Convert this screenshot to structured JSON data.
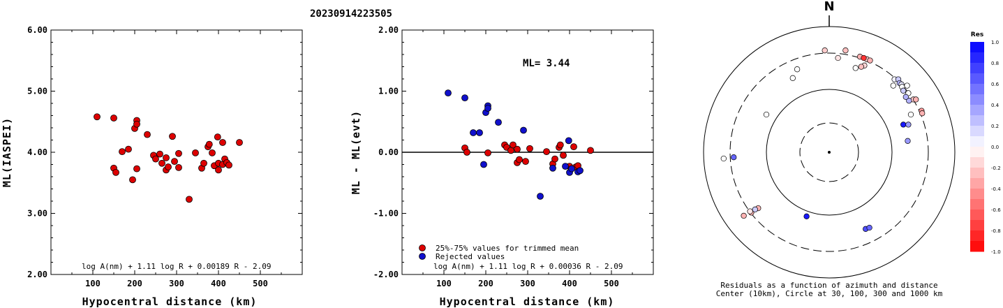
{
  "event_id": "20230914223505",
  "chart_data": [
    {
      "type": "scatter",
      "xlabel": "Hypocentral distance (km)",
      "ylabel": "ML(IASPEI)",
      "xlim": [
        0,
        600
      ],
      "ylim": [
        2.0,
        6.0
      ],
      "xticks": [
        "100",
        "200",
        "300",
        "400",
        "500"
      ],
      "yticks": [
        "2.00",
        "3.00",
        "4.00",
        "5.00",
        "6.00"
      ],
      "formula": "log A(nm) + 1.11 log R + 0.00189 R - 2.09",
      "color": "#dd0000",
      "points": [
        [
          110,
          4.58
        ],
        [
          150,
          4.56
        ],
        [
          150,
          3.74
        ],
        [
          155,
          3.67
        ],
        [
          170,
          4.01
        ],
        [
          185,
          4.05
        ],
        [
          195,
          3.55
        ],
        [
          200,
          4.39
        ],
        [
          205,
          4.52
        ],
        [
          205,
          4.46
        ],
        [
          205,
          3.73
        ],
        [
          230,
          4.29
        ],
        [
          245,
          3.95
        ],
        [
          250,
          3.89
        ],
        [
          260,
          3.97
        ],
        [
          265,
          3.82
        ],
        [
          275,
          3.91
        ],
        [
          275,
          3.71
        ],
        [
          280,
          3.76
        ],
        [
          290,
          4.26
        ],
        [
          295,
          3.85
        ],
        [
          305,
          3.98
        ],
        [
          305,
          3.75
        ],
        [
          330,
          3.23
        ],
        [
          345,
          3.99
        ],
        [
          360,
          3.74
        ],
        [
          365,
          3.82
        ],
        [
          375,
          4.09
        ],
        [
          378,
          4.13
        ],
        [
          385,
          3.99
        ],
        [
          390,
          3.78
        ],
        [
          398,
          4.25
        ],
        [
          400,
          3.82
        ],
        [
          400,
          3.71
        ],
        [
          410,
          4.16
        ],
        [
          410,
          3.8
        ],
        [
          415,
          3.89
        ],
        [
          420,
          3.83
        ],
        [
          425,
          3.79
        ],
        [
          450,
          4.16
        ]
      ]
    },
    {
      "type": "scatter",
      "xlabel": "Hypocentral distance (km)",
      "ylabel": "ML - ML(evt)",
      "xlim": [
        0,
        600
      ],
      "ylim": [
        -2.0,
        2.0
      ],
      "xticks": [
        "100",
        "200",
        "300",
        "400",
        "500"
      ],
      "yticks": [
        "-2.00",
        "-1.00",
        "0.00",
        "1.00",
        "2.00"
      ],
      "annotation": "ML= 3.44",
      "formula": "log A(nm) + 1.11 log R + 0.00036 R - 2.09",
      "legend": [
        {
          "label": "25%-75% values for trimmed mean",
          "color": "#dd0000"
        },
        {
          "label": "Rejected values",
          "color": "#1010cc"
        }
      ],
      "series": [
        {
          "name": "25%-75% values for trimmed mean",
          "color": "#dd0000",
          "points": [
            [
              150,
              0.07
            ],
            [
              155,
              0.0
            ],
            [
              205,
              -0.01
            ],
            [
              245,
              0.12
            ],
            [
              250,
              0.08
            ],
            [
              260,
              0.03
            ],
            [
              265,
              0.12
            ],
            [
              275,
              0.05
            ],
            [
              275,
              -0.17
            ],
            [
              280,
              -0.12
            ],
            [
              295,
              -0.15
            ],
            [
              305,
              0.06
            ],
            [
              345,
              0.01
            ],
            [
              360,
              -0.19
            ],
            [
              365,
              -0.11
            ],
            [
              375,
              0.08
            ],
            [
              378,
              0.12
            ],
            [
              385,
              -0.05
            ],
            [
              400,
              -0.23
            ],
            [
              410,
              0.09
            ],
            [
              415,
              -0.24
            ],
            [
              420,
              -0.22
            ],
            [
              450,
              0.03
            ]
          ]
        },
        {
          "name": "Rejected values",
          "color": "#1010cc",
          "points": [
            [
              110,
              0.97
            ],
            [
              150,
              0.89
            ],
            [
              170,
              0.32
            ],
            [
              185,
              0.32
            ],
            [
              195,
              -0.2
            ],
            [
              200,
              0.65
            ],
            [
              205,
              0.76
            ],
            [
              205,
              0.72
            ],
            [
              230,
              0.49
            ],
            [
              290,
              0.36
            ],
            [
              330,
              -0.72
            ],
            [
              360,
              -0.26
            ],
            [
              390,
              -0.23
            ],
            [
              398,
              0.19
            ],
            [
              400,
              -0.33
            ],
            [
              405,
              -0.27
            ],
            [
              420,
              -0.32
            ],
            [
              425,
              -0.3
            ]
          ]
        }
      ]
    },
    {
      "type": "polar",
      "north_label": "N",
      "caption_line1": "Residuals as a function of azimuth and distance",
      "caption_line2": "Center (10km), Circle at 30, 100, 300 and 1000 km",
      "colorbar_title": "Res",
      "colorbar_ticks": [
        "1.0",
        "0.8",
        "0.6",
        "0.4",
        "0.2",
        "0.0",
        "-0.2",
        "-0.4",
        "-0.6",
        "-0.8",
        "-1.0"
      ],
      "stations": [
        {
          "dx": -0.035,
          "dy": -0.81,
          "res": -0.2
        },
        {
          "dx": 0.13,
          "dy": -0.81,
          "res": -0.25
        },
        {
          "dx": 0.07,
          "dy": -0.75,
          "res": -0.1
        },
        {
          "dx": 0.245,
          "dy": -0.76,
          "res": -0.3
        },
        {
          "dx": 0.3,
          "dy": -0.74,
          "res": -0.2
        },
        {
          "dx": 0.325,
          "dy": -0.73,
          "res": -0.3
        },
        {
          "dx": 0.275,
          "dy": -0.75,
          "res": -0.8
        },
        {
          "dx": 0.28,
          "dy": -0.69,
          "res": -0.15
        },
        {
          "dx": 0.21,
          "dy": -0.67,
          "res": 0.0
        },
        {
          "dx": 0.255,
          "dy": -0.68,
          "res": -0.25
        },
        {
          "dx": -0.255,
          "dy": -0.66,
          "res": 0.0
        },
        {
          "dx": -0.29,
          "dy": -0.59,
          "res": 0.0
        },
        {
          "dx": 0.52,
          "dy": -0.58,
          "res": 0.05
        },
        {
          "dx": 0.55,
          "dy": -0.58,
          "res": 0.2
        },
        {
          "dx": 0.56,
          "dy": -0.55,
          "res": 0.3
        },
        {
          "dx": 0.575,
          "dy": -0.54,
          "res": 0.1
        },
        {
          "dx": 0.58,
          "dy": -0.52,
          "res": 0.0
        },
        {
          "dx": 0.51,
          "dy": -0.53,
          "res": 0.0
        },
        {
          "dx": 0.62,
          "dy": -0.53,
          "res": 0.0
        },
        {
          "dx": 0.63,
          "dy": -0.47,
          "res": 0.0
        },
        {
          "dx": 0.67,
          "dy": -0.42,
          "res": -0.2
        },
        {
          "dx": 0.69,
          "dy": -0.42,
          "res": -0.3
        },
        {
          "dx": 0.635,
          "dy": -0.41,
          "res": 0.3
        },
        {
          "dx": 0.61,
          "dy": -0.44,
          "res": 0.3
        },
        {
          "dx": 0.59,
          "dy": -0.49,
          "res": 0.2
        },
        {
          "dx": 0.735,
          "dy": -0.33,
          "res": -0.4
        },
        {
          "dx": 0.74,
          "dy": -0.31,
          "res": -0.3
        },
        {
          "dx": 0.65,
          "dy": -0.3,
          "res": 0.0
        },
        {
          "dx": 0.59,
          "dy": -0.22,
          "res": 0.9
        },
        {
          "dx": 0.63,
          "dy": -0.22,
          "res": 0.4
        },
        {
          "dx": 0.625,
          "dy": -0.09,
          "res": 0.4
        },
        {
          "dx": -0.5,
          "dy": -0.3,
          "res": 0.0
        },
        {
          "dx": -0.76,
          "dy": 0.04,
          "res": 0.6
        },
        {
          "dx": -0.84,
          "dy": 0.05,
          "res": 0.0
        },
        {
          "dx": -0.62,
          "dy": 0.48,
          "res": -0.3
        },
        {
          "dx": -0.565,
          "dy": 0.445,
          "res": -0.3
        },
        {
          "dx": -0.59,
          "dy": 0.455,
          "res": 0.2
        },
        {
          "dx": -0.63,
          "dy": 0.47,
          "res": -0.1
        },
        {
          "dx": -0.68,
          "dy": 0.505,
          "res": -0.3
        },
        {
          "dx": -0.18,
          "dy": 0.51,
          "res": 0.9
        },
        {
          "dx": 0.29,
          "dy": 0.61,
          "res": 0.7
        },
        {
          "dx": 0.32,
          "dy": 0.6,
          "res": 0.6
        }
      ]
    }
  ]
}
